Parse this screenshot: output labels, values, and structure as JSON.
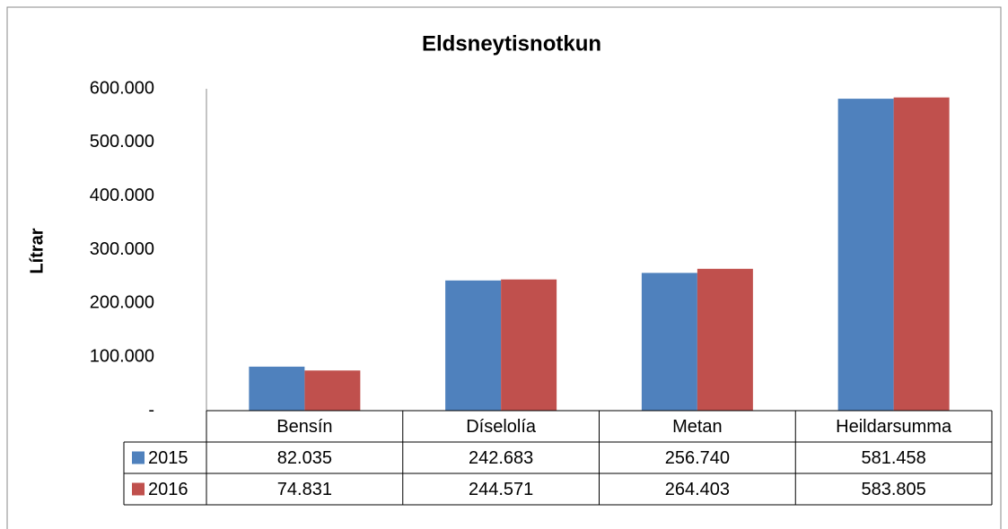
{
  "chart_data": {
    "type": "bar",
    "title": "Eldsneytisnotkun",
    "y_label": "Lítrar",
    "categories": [
      "Bensín",
      "Díselolía",
      "Metan",
      "Heildarsumma"
    ],
    "series": [
      {
        "name": "2015",
        "color": "#4f81bd",
        "values": [
          82035,
          242683,
          256740,
          581458
        ],
        "value_labels": [
          "82.035",
          "242.683",
          "256.740",
          "581.458"
        ]
      },
      {
        "name": "2016",
        "color": "#c0504d",
        "values": [
          74831,
          244571,
          264403,
          583805
        ],
        "value_labels": [
          "74.831",
          "244.571",
          "264.403",
          "583.805"
        ]
      }
    ],
    "ylim": [
      0,
      600000
    ],
    "yticks": [
      {
        "value": 0,
        "label": "-"
      },
      {
        "value": 100000,
        "label": "100.000"
      },
      {
        "value": 200000,
        "label": "200.000"
      },
      {
        "value": 300000,
        "label": "300.000"
      },
      {
        "value": 400000,
        "label": "400.000"
      },
      {
        "value": 500000,
        "label": "500.000"
      },
      {
        "value": 600000,
        "label": "600.000"
      }
    ],
    "grid": false
  }
}
